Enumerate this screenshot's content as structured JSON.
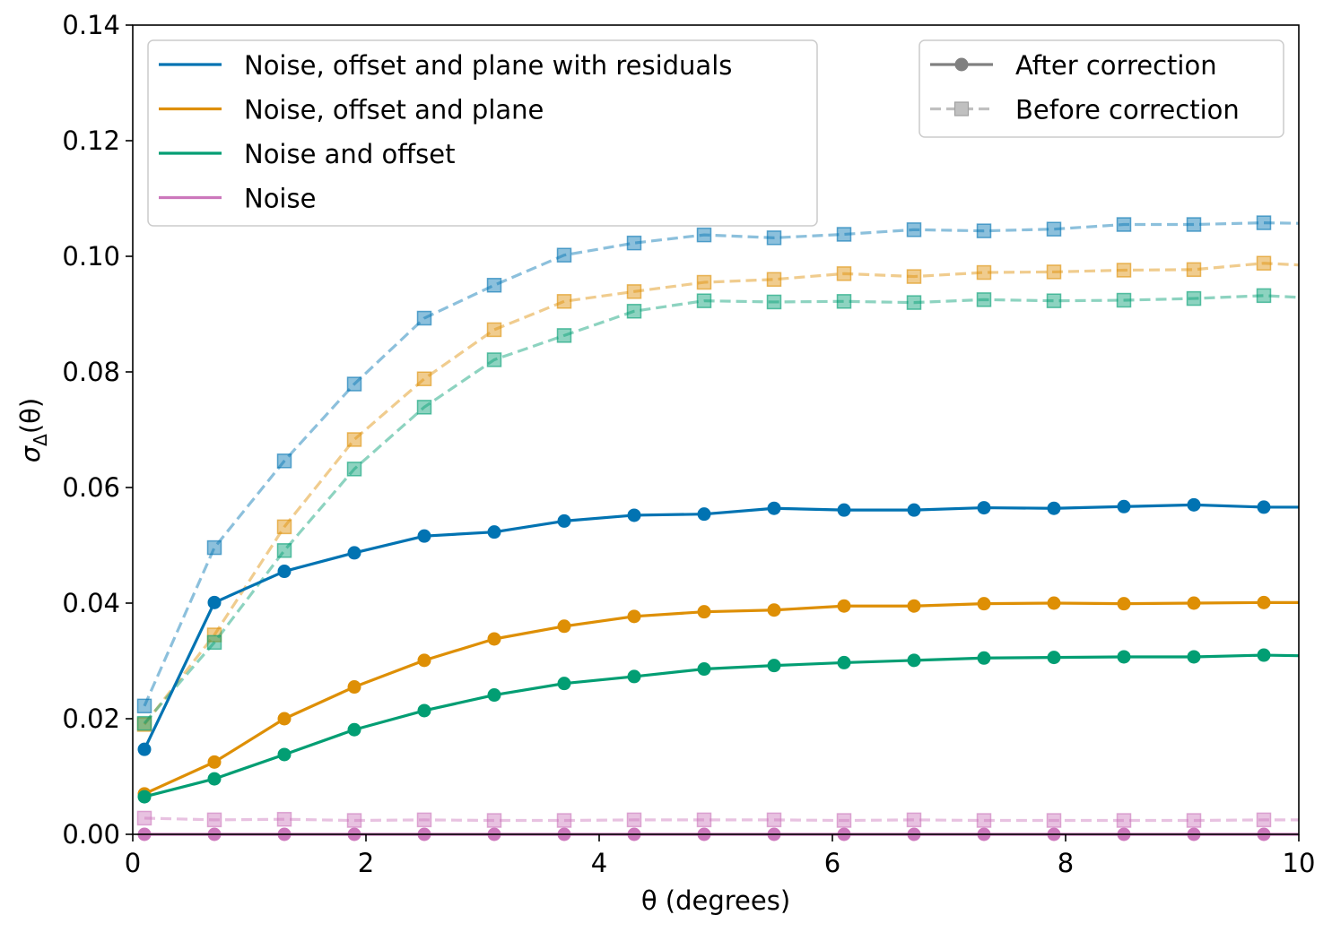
{
  "chart_data": {
    "type": "line",
    "title": "",
    "xlabel": "θ (degrees)",
    "ylabel": "σΔ(θ)",
    "ylabel_main": "σ",
    "ylabel_sub": "Δ",
    "ylabel_arg": "(θ)",
    "xlim": [
      0,
      10
    ],
    "ylim": [
      0,
      0.14
    ],
    "xticks": [
      0,
      2,
      4,
      6,
      8,
      10
    ],
    "xtick_labels": [
      "0",
      "2",
      "4",
      "6",
      "8",
      "10"
    ],
    "yticks": [
      0.0,
      0.02,
      0.04,
      0.06,
      0.08,
      0.1,
      0.12,
      0.14
    ],
    "ytick_labels": [
      "0.00",
      "0.02",
      "0.04",
      "0.06",
      "0.08",
      "0.10",
      "0.12",
      "0.14"
    ],
    "grid": false,
    "x": [
      0.1,
      0.7,
      1.3,
      1.9,
      2.5,
      3.1,
      3.7,
      4.3,
      4.9,
      5.5,
      6.1,
      6.7,
      7.3,
      7.9,
      8.5,
      9.1,
      9.7
    ],
    "series": [
      {
        "name": "Noise, offset and plane with residuals",
        "color": "#0173b2",
        "after": [
          0.0147,
          0.0401,
          0.0455,
          0.0487,
          0.0516,
          0.0523,
          0.0542,
          0.0552,
          0.0554,
          0.0564,
          0.0561,
          0.0561,
          0.0565,
          0.0564,
          0.0567,
          0.057,
          0.0566
        ],
        "after_end": 0.0566,
        "before": [
          0.0222,
          0.0496,
          0.0646,
          0.0779,
          0.0893,
          0.095,
          0.1002,
          0.1023,
          0.1037,
          0.1032,
          0.1038,
          0.1046,
          0.1044,
          0.1047,
          0.1055,
          0.1055,
          0.1058
        ],
        "before_end": 0.1057
      },
      {
        "name": "Noise, offset and plane",
        "color": "#de8f05",
        "after": [
          0.007,
          0.0125,
          0.02,
          0.0255,
          0.0301,
          0.0338,
          0.036,
          0.0377,
          0.0385,
          0.0388,
          0.0395,
          0.0395,
          0.0399,
          0.04,
          0.0399,
          0.04,
          0.0401
        ],
        "after_end": 0.0401,
        "before": [
          0.019,
          0.0345,
          0.0532,
          0.0683,
          0.0788,
          0.0873,
          0.0922,
          0.0939,
          0.0955,
          0.096,
          0.097,
          0.0965,
          0.0972,
          0.0973,
          0.0976,
          0.0977,
          0.0988
        ],
        "before_end": 0.0985
      },
      {
        "name": "Noise and offset",
        "color": "#029e73",
        "after": [
          0.0065,
          0.0096,
          0.0138,
          0.0181,
          0.0214,
          0.0241,
          0.0261,
          0.0273,
          0.0286,
          0.0292,
          0.0297,
          0.0301,
          0.0305,
          0.0306,
          0.0307,
          0.0307,
          0.031
        ],
        "after_end": 0.0309,
        "before": [
          0.0192,
          0.0332,
          0.0491,
          0.0632,
          0.0739,
          0.0821,
          0.0863,
          0.0905,
          0.0923,
          0.0921,
          0.0922,
          0.092,
          0.0925,
          0.0923,
          0.0924,
          0.0927,
          0.0932
        ],
        "before_end": 0.0929
      },
      {
        "name": "Noise",
        "color": "#cc78bc",
        "after": [
          0.0,
          0.0,
          0.0,
          0.0,
          0.0,
          0.0,
          0.0,
          0.0,
          0.0,
          0.0,
          0.0,
          0.0,
          0.0,
          0.0,
          0.0,
          0.0,
          0.0
        ],
        "after_end": 0.0,
        "before": [
          0.0028,
          0.0025,
          0.0026,
          0.0024,
          0.0025,
          0.0024,
          0.0024,
          0.0025,
          0.0025,
          0.0025,
          0.0024,
          0.0025,
          0.0024,
          0.0024,
          0.0024,
          0.0024,
          0.0025
        ],
        "before_end": 0.0025
      }
    ],
    "legend_series": {
      "location": "upper-left",
      "entries": [
        "Noise, offset and plane with residuals",
        "Noise, offset and plane",
        "Noise and offset",
        "Noise"
      ]
    },
    "legend_style": {
      "location": "upper-right",
      "entries": [
        {
          "label": "After correction",
          "color": "#808080",
          "linestyle": "solid",
          "marker": "circle"
        },
        {
          "label": "Before correction",
          "color": "#c0c0c0",
          "linestyle": "dashed",
          "marker": "square"
        }
      ]
    }
  }
}
